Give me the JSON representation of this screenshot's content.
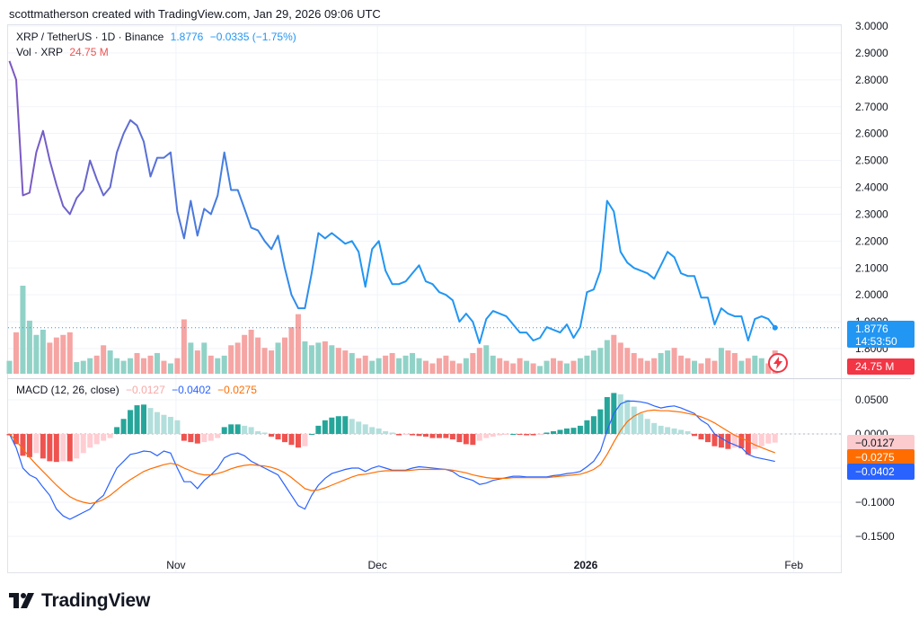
{
  "header": {
    "text": "scottmatherson created with TradingView.com, Jan 29, 2026 09:06 UTC"
  },
  "legend": {
    "symbol": "XRP / TetherUS · 1D · Binance",
    "price": "1.8776",
    "change": "−0.0335 (−1.75%)",
    "vol_label": "Vol · XRP",
    "vol_value": "24.75 M",
    "macd_label": "MACD (12, 26, close)",
    "macd_hist": "−0.0127",
    "macd_line": "−0.0402",
    "macd_signal": "−0.0275"
  },
  "price_tag": {
    "price": "1.8776",
    "countdown": "14:53:50",
    "volume": "24.75 M"
  },
  "macd_tags": [
    "−0.0127",
    "−0.0275",
    "−0.0402"
  ],
  "brand": {
    "name": "TradingView"
  },
  "colors": {
    "price_line_start": "#7e57c2",
    "price_line_end": "#2196f3",
    "vol_up": "#91d2c7",
    "vol_down": "#f5a5a3",
    "hist_up_strong": "#26a69a",
    "hist_up_weak": "#b2dfdb",
    "hist_down_strong": "#ef5350",
    "hist_down_weak": "#ffcdd2",
    "macd_line": "#2962ff",
    "signal_line": "#ff6d00"
  },
  "chart_data": [
    {
      "type": "line",
      "title": "XRP / TetherUS · 1D · Binance",
      "x_ticks": [
        "Nov",
        "Dec",
        "2026",
        "Feb"
      ],
      "y_ticks": [
        "3.0000",
        "2.9000",
        "2.8000",
        "2.7000",
        "2.6000",
        "2.5000",
        "2.4000",
        "2.3000",
        "2.2000",
        "2.1000",
        "2.0000",
        "1.9000",
        "1.8000"
      ],
      "ylim": [
        1.8,
        3.0
      ],
      "grid": true,
      "x_range_days": [
        "2025-10-07",
        "2026-02-08"
      ],
      "series": [
        {
          "values": [
            2.87,
            2.8,
            2.37,
            2.38,
            2.53,
            2.61,
            2.5,
            2.41,
            2.33,
            2.3,
            2.36,
            2.39,
            2.5,
            2.43,
            2.37,
            2.4,
            2.53,
            2.6,
            2.65,
            2.63,
            2.57,
            2.44,
            2.51,
            2.51,
            2.53,
            2.31,
            2.21,
            2.35,
            2.22,
            2.32,
            2.3,
            2.37,
            2.53,
            2.39,
            2.39,
            2.32,
            2.25,
            2.24,
            2.2,
            2.17,
            2.22,
            2.1,
            2.0,
            1.95,
            1.95,
            2.08,
            2.23,
            2.21,
            2.23,
            2.21,
            2.19,
            2.2,
            2.16,
            2.03,
            2.17,
            2.2,
            2.09,
            2.04,
            2.04,
            2.05,
            2.08,
            2.11,
            2.05,
            2.04,
            2.01,
            2.0,
            1.98,
            1.9,
            1.93,
            1.9,
            1.82,
            1.91,
            1.94,
            1.93,
            1.92,
            1.89,
            1.86,
            1.86,
            1.83,
            1.84,
            1.88,
            1.87,
            1.86,
            1.89,
            1.84,
            1.88,
            2.01,
            2.02,
            2.09,
            2.35,
            2.31,
            2.16,
            2.12,
            2.1,
            2.09,
            2.08,
            2.06,
            2.11,
            2.16,
            2.14,
            2.08,
            2.07,
            2.07,
            1.99,
            1.99,
            1.89,
            1.95,
            1.93,
            1.92,
            1.92,
            1.83,
            1.91,
            1.92,
            1.91,
            1.8776
          ]
        }
      ]
    },
    {
      "type": "bar",
      "title": "Vol · XRP",
      "last_value": "24.75 M",
      "values": [
        10,
        32,
        68,
        41,
        30,
        34,
        24,
        28,
        30,
        32,
        9,
        10,
        12,
        14,
        22,
        18,
        12,
        10,
        12,
        16,
        12,
        14,
        16,
        10,
        8,
        12,
        42,
        24,
        18,
        24,
        14,
        12,
        14,
        22,
        24,
        30,
        34,
        28,
        20,
        18,
        24,
        28,
        36,
        46,
        25,
        22,
        24,
        25,
        22,
        20,
        18,
        16,
        12,
        14,
        10,
        12,
        14,
        16,
        12,
        14,
        16,
        12,
        10,
        8,
        12,
        14,
        10,
        8,
        12,
        16,
        20,
        22,
        14,
        12,
        10,
        8,
        12,
        10,
        8,
        6,
        10,
        12,
        10,
        8,
        10,
        12,
        14,
        18,
        20,
        26,
        30,
        24,
        20,
        16,
        12,
        10,
        12,
        16,
        18,
        20,
        14,
        12,
        10,
        8,
        12,
        10,
        20,
        18,
        16,
        10,
        12,
        14,
        12,
        8,
        18
      ],
      "directions": [
        1,
        0,
        1,
        1,
        1,
        1,
        0,
        0,
        0,
        0,
        1,
        1,
        1,
        0,
        0,
        1,
        1,
        1,
        1,
        0,
        0,
        0,
        1,
        0,
        1,
        0,
        0,
        1,
        0,
        1,
        0,
        1,
        1,
        0,
        0,
        0,
        0,
        0,
        0,
        0,
        1,
        0,
        0,
        0,
        1,
        1,
        1,
        0,
        1,
        0,
        0,
        1,
        0,
        0,
        1,
        1,
        0,
        0,
        1,
        1,
        1,
        1,
        0,
        0,
        0,
        0,
        0,
        0,
        1,
        0,
        0,
        1,
        1,
        0,
        0,
        0,
        0,
        1,
        0,
        1,
        1,
        0,
        0,
        1,
        0,
        1,
        1,
        1,
        1,
        1,
        0,
        0,
        0,
        0,
        0,
        0,
        0,
        1,
        1,
        0,
        0,
        0,
        1,
        0,
        0,
        0,
        1,
        0,
        0,
        1,
        0,
        1,
        1,
        0,
        0
      ]
    },
    {
      "type": "bar",
      "title": "MACD (12, 26, close)",
      "y_ticks": [
        "0.0500",
        "0.0000",
        "−0.0500",
        "−0.1000",
        "−0.1500"
      ],
      "ylim": [
        -0.17,
        0.07
      ],
      "histogram": [
        -0.002,
        -0.015,
        -0.032,
        -0.034,
        -0.028,
        -0.036,
        -0.04,
        -0.041,
        -0.04,
        -0.04,
        -0.036,
        -0.028,
        -0.02,
        -0.015,
        -0.01,
        -0.006,
        0.01,
        0.022,
        0.035,
        0.042,
        0.043,
        0.038,
        0.032,
        0.028,
        0.025,
        0.02,
        -0.01,
        -0.012,
        -0.014,
        -0.012,
        -0.01,
        -0.006,
        0.01,
        0.014,
        0.014,
        0.012,
        0.01,
        0.004,
        0.002,
        -0.004,
        -0.008,
        -0.012,
        -0.016,
        -0.02,
        -0.018,
        0.0,
        0.012,
        0.02,
        0.024,
        0.026,
        0.026,
        0.022,
        0.018,
        0.014,
        0.01,
        0.008,
        0.004,
        0.002,
        -0.002,
        -0.001,
        -0.002,
        -0.003,
        -0.004,
        -0.006,
        -0.006,
        -0.006,
        -0.008,
        -0.012,
        -0.015,
        -0.016,
        -0.01,
        -0.006,
        -0.004,
        -0.002,
        -0.001,
        0.0,
        -0.001,
        -0.002,
        -0.002,
        -0.001,
        0.002,
        0.004,
        0.006,
        0.008,
        0.009,
        0.012,
        0.02,
        0.026,
        0.036,
        0.054,
        0.06,
        0.058,
        0.05,
        0.04,
        0.03,
        0.022,
        0.016,
        0.012,
        0.01,
        0.008,
        0.006,
        0.004,
        -0.003,
        -0.008,
        -0.012,
        -0.018,
        -0.02,
        -0.022,
        -0.02,
        -0.021,
        -0.03,
        -0.022,
        -0.018,
        -0.014,
        -0.0127
      ],
      "series": [
        {
          "name": "MACD",
          "values": [
            0.0,
            -0.02,
            -0.05,
            -0.06,
            -0.065,
            -0.078,
            -0.09,
            -0.11,
            -0.12,
            -0.125,
            -0.12,
            -0.115,
            -0.11,
            -0.098,
            -0.09,
            -0.07,
            -0.05,
            -0.04,
            -0.03,
            -0.028,
            -0.025,
            -0.026,
            -0.032,
            -0.025,
            -0.028,
            -0.05,
            -0.07,
            -0.07,
            -0.08,
            -0.068,
            -0.06,
            -0.05,
            -0.035,
            -0.03,
            -0.028,
            -0.032,
            -0.04,
            -0.045,
            -0.05,
            -0.055,
            -0.06,
            -0.075,
            -0.09,
            -0.105,
            -0.11,
            -0.09,
            -0.075,
            -0.065,
            -0.058,
            -0.055,
            -0.052,
            -0.05,
            -0.05,
            -0.055,
            -0.05,
            -0.047,
            -0.05,
            -0.053,
            -0.053,
            -0.053,
            -0.05,
            -0.048,
            -0.049,
            -0.05,
            -0.051,
            -0.052,
            -0.055,
            -0.062,
            -0.065,
            -0.068,
            -0.074,
            -0.072,
            -0.068,
            -0.066,
            -0.064,
            -0.062,
            -0.062,
            -0.063,
            -0.063,
            -0.063,
            -0.063,
            -0.061,
            -0.06,
            -0.058,
            -0.057,
            -0.055,
            -0.048,
            -0.04,
            -0.025,
            0.005,
            0.03,
            0.044,
            0.048,
            0.048,
            0.047,
            0.045,
            0.041,
            0.038,
            0.04,
            0.041,
            0.038,
            0.034,
            0.03,
            0.02,
            0.014,
            0.0,
            -0.006,
            -0.012,
            -0.016,
            -0.02,
            -0.03,
            -0.034,
            -0.036,
            -0.038,
            -0.0402
          ]
        },
        {
          "name": "Signal",
          "values": [
            0.0,
            -0.01,
            -0.022,
            -0.034,
            -0.045,
            -0.055,
            -0.065,
            -0.075,
            -0.084,
            -0.092,
            -0.097,
            -0.1,
            -0.102,
            -0.1,
            -0.096,
            -0.09,
            -0.082,
            -0.074,
            -0.067,
            -0.061,
            -0.055,
            -0.051,
            -0.048,
            -0.045,
            -0.043,
            -0.045,
            -0.05,
            -0.054,
            -0.058,
            -0.06,
            -0.06,
            -0.058,
            -0.055,
            -0.051,
            -0.048,
            -0.046,
            -0.045,
            -0.046,
            -0.047,
            -0.049,
            -0.052,
            -0.057,
            -0.064,
            -0.072,
            -0.08,
            -0.083,
            -0.082,
            -0.079,
            -0.075,
            -0.071,
            -0.067,
            -0.063,
            -0.06,
            -0.059,
            -0.057,
            -0.055,
            -0.054,
            -0.054,
            -0.054,
            -0.054,
            -0.053,
            -0.052,
            -0.052,
            -0.052,
            -0.052,
            -0.052,
            -0.053,
            -0.055,
            -0.057,
            -0.06,
            -0.062,
            -0.064,
            -0.065,
            -0.065,
            -0.065,
            -0.064,
            -0.064,
            -0.064,
            -0.064,
            -0.064,
            -0.064,
            -0.063,
            -0.062,
            -0.061,
            -0.06,
            -0.059,
            -0.056,
            -0.052,
            -0.045,
            -0.03,
            -0.012,
            0.005,
            0.018,
            0.026,
            0.031,
            0.034,
            0.035,
            0.034,
            0.034,
            0.033,
            0.032,
            0.03,
            0.028,
            0.025,
            0.021,
            0.016,
            0.01,
            0.004,
            -0.002,
            -0.006,
            -0.011,
            -0.016,
            -0.02,
            -0.024,
            -0.0275
          ]
        }
      ]
    }
  ]
}
